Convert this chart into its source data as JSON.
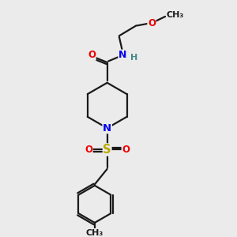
{
  "bg_color": "#ebebeb",
  "bond_color": "#1a1a1a",
  "N_color": "#0000ee",
  "O_color": "#ee0000",
  "S_color": "#bbaa00",
  "H_color": "#448888",
  "line_width": 1.6,
  "font_size": 8.5,
  "figsize": [
    3.0,
    3.0
  ],
  "dpi": 100,
  "xlim": [
    0,
    10
  ],
  "ylim": [
    0,
    10
  ]
}
